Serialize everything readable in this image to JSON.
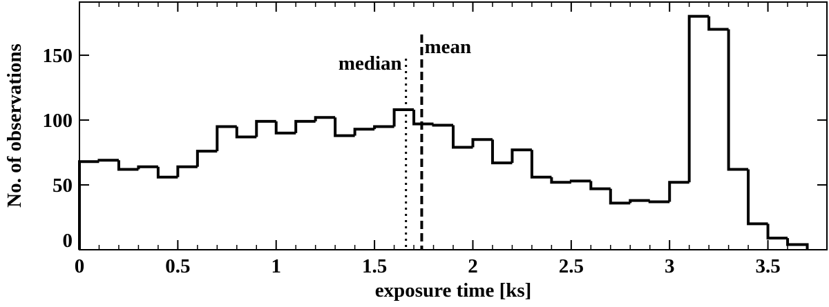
{
  "chart_data": {
    "type": "histogram",
    "xlabel": "exposure time [ks]",
    "ylabel": "No. of observations",
    "bins": [
      0,
      0.1,
      0.2,
      0.3,
      0.4,
      0.5,
      0.6,
      0.7,
      0.8,
      0.9,
      1.0,
      1.1,
      1.2,
      1.3,
      1.4,
      1.5,
      1.6,
      1.7,
      1.8,
      1.9,
      2.0,
      2.1,
      2.2,
      2.3,
      2.4,
      2.5,
      2.6,
      2.7,
      2.8,
      2.9,
      3.0,
      3.1,
      3.2,
      3.3,
      3.4,
      3.5,
      3.6,
      3.7
    ],
    "values": [
      68,
      69,
      62,
      64,
      56,
      64,
      76,
      95,
      87,
      99,
      90,
      99,
      102,
      88,
      93,
      95,
      108,
      97,
      96,
      79,
      85,
      67,
      77,
      56,
      52,
      53,
      47,
      36,
      38,
      37,
      52,
      180,
      170,
      62,
      20,
      9,
      4
    ],
    "color": "#000000",
    "xlim": [
      0,
      3.8
    ],
    "ylim": [
      0,
      191
    ],
    "xticks": [
      0,
      0.5,
      1,
      1.5,
      2,
      2.5,
      3,
      3.5
    ],
    "yticks": [
      0,
      50,
      100,
      150
    ],
    "vlines": [
      {
        "label": "median",
        "x": 1.66,
        "style": "dotted"
      },
      {
        "label": "mean",
        "x": 1.74,
        "style": "dashed"
      }
    ]
  }
}
